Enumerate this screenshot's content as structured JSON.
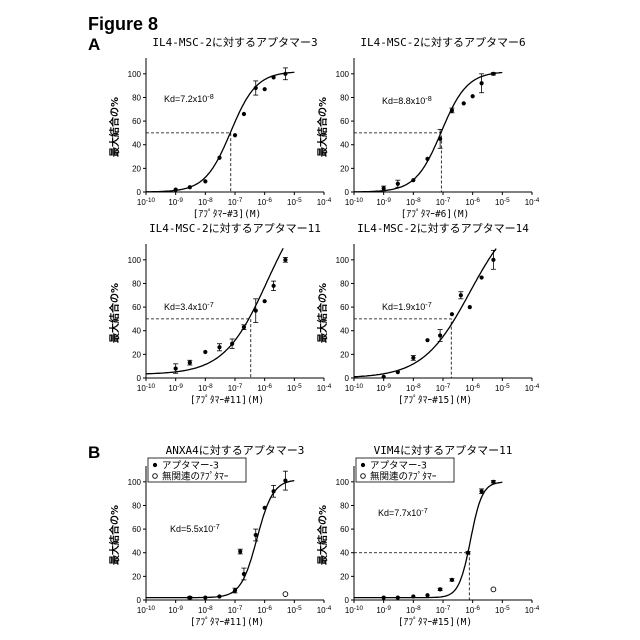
{
  "figure_title": "Figure 8",
  "section_labels": [
    "A",
    "B"
  ],
  "legend": {
    "filled": "アプタマー-3",
    "open": "無関連のｱﾌﾟﾀﾏｰ"
  },
  "chart_data": [
    {
      "type": "scatter",
      "title": "IL4-MSC-2に対するアプタマー3",
      "ylabel": "最大結合の%",
      "xlabel": "[ｱﾌﾟﾀﾏｰ#3](M)",
      "x_scale": "log",
      "xlim": [
        1e-10,
        0.0001
      ],
      "ylim": [
        0,
        110
      ],
      "xtick_labels": [
        "10-10",
        "10-9",
        "10-8",
        "10-7",
        "10-6",
        "10-5",
        "10-4"
      ],
      "ytick_labels": [
        "0",
        "20",
        "40",
        "60",
        "80",
        "100"
      ],
      "kd_label": "Kd=7.2x10-8",
      "kd_marker": {
        "x": 7.2e-08,
        "y": 50
      },
      "series": [
        {
          "marker": "filled",
          "x": [
            1e-09,
            3e-09,
            1e-08,
            3e-08,
            1e-07,
            2e-07,
            5e-07,
            1e-06,
            2e-06,
            5e-06
          ],
          "y": [
            2,
            4,
            9,
            29,
            48,
            66,
            88,
            87,
            97,
            100
          ],
          "err": [
            0,
            0,
            0,
            0,
            0,
            0,
            6,
            0,
            0,
            5
          ]
        }
      ],
      "fit": {
        "bottom": 0,
        "top": 102,
        "ec50": 7.2e-08,
        "hill": 1.0
      }
    },
    {
      "type": "scatter",
      "title": "IL4-MSC-2に対するアプタマー6",
      "ylabel": "最大結合の%",
      "xlabel": "[ｱﾌﾟﾀﾏｰ#6](M)",
      "x_scale": "log",
      "xlim": [
        1e-10,
        0.0001
      ],
      "ylim": [
        0,
        110
      ],
      "xtick_labels": [
        "10-10",
        "10-9",
        "10-8",
        "10-7",
        "10-6",
        "10-5",
        "10-4"
      ],
      "ytick_labels": [
        "0",
        "20",
        "40",
        "60",
        "80",
        "100"
      ],
      "kd_label": "Kd=8.8x10-8",
      "kd_marker": {
        "x": 8.8e-08,
        "y": 50
      },
      "series": [
        {
          "marker": "filled",
          "x": [
            1e-09,
            3e-09,
            1e-08,
            3e-08,
            8e-08,
            2e-07,
            5e-07,
            1e-06,
            2e-06,
            5e-06
          ],
          "y": [
            3,
            7,
            10,
            28,
            45,
            69,
            75,
            81,
            92,
            100
          ],
          "err": [
            2,
            3,
            0,
            0,
            8,
            2,
            0,
            0,
            8,
            1
          ]
        }
      ],
      "fit": {
        "bottom": 0,
        "top": 102,
        "ec50": 8.8e-08,
        "hill": 1.0
      }
    },
    {
      "type": "scatter",
      "title": "IL4-MSC-2に対するアプタマー11",
      "ylabel": "最大結合の%",
      "xlabel": "[ｱﾌﾟﾀﾏｰ#11](M)",
      "x_scale": "log",
      "xlim": [
        1e-10,
        0.0001
      ],
      "ylim": [
        0,
        110
      ],
      "xtick_labels": [
        "10-10",
        "10-9",
        "10-8",
        "10-7",
        "10-6",
        "10-5",
        "10-4"
      ],
      "ytick_labels": [
        "0",
        "20",
        "40",
        "60",
        "80",
        "100"
      ],
      "kd_label": "Kd=3.4x10-7",
      "kd_marker": {
        "x": 3.4e-07,
        "y": 50
      },
      "series": [
        {
          "marker": "filled",
          "x": [
            1e-09,
            3e-09,
            1e-08,
            3e-08,
            8e-08,
            2e-07,
            5e-07,
            1e-06,
            2e-06,
            5e-06
          ],
          "y": [
            8,
            13,
            22,
            26,
            29,
            43,
            57,
            65,
            78,
            100
          ],
          "err": [
            4,
            2,
            0,
            3,
            4,
            2,
            10,
            0,
            4,
            2
          ]
        }
      ],
      "fit": {
        "bottom": 3,
        "top": 160,
        "ec50": 1.2e-06,
        "hill": 0.6
      }
    },
    {
      "type": "scatter",
      "title": "IL4-MSC-2に対するアプタマー14",
      "ylabel": "最大結合の%",
      "xlabel": "[ｱﾌﾟﾀﾏｰ#15](M)",
      "x_scale": "log",
      "xlim": [
        1e-10,
        0.0001
      ],
      "ylim": [
        0,
        110
      ],
      "xtick_labels": [
        "10-10",
        "10-9",
        "10-8",
        "10-7",
        "10-6",
        "10-5",
        "10-4"
      ],
      "ytick_labels": [
        "0",
        "20",
        "40",
        "60",
        "80",
        "100"
      ],
      "kd_label": "Kd=1.9x10-7",
      "kd_marker": {
        "x": 1.9e-07,
        "y": 50
      },
      "series": [
        {
          "marker": "filled",
          "x": [
            1e-09,
            3e-09,
            1e-08,
            3e-08,
            8e-08,
            2e-07,
            4e-07,
            8e-07,
            2e-06,
            5e-06
          ],
          "y": [
            1,
            5,
            17,
            32,
            36,
            54,
            70,
            60,
            85,
            100
          ],
          "err": [
            0,
            0,
            2,
            0,
            5,
            0,
            3,
            0,
            0,
            8
          ]
        }
      ],
      "fit": {
        "bottom": 0,
        "top": 145,
        "ec50": 8e-07,
        "hill": 0.55
      }
    },
    {
      "type": "scatter",
      "title": "ANXA4に対するアプタマー3",
      "ylabel": "最大結合の%",
      "xlabel": "[ｱﾌﾟﾀﾏｰ#11](M)",
      "x_scale": "log",
      "xlim": [
        1e-10,
        0.0001
      ],
      "ylim": [
        0,
        110
      ],
      "xtick_labels": [
        "10-10",
        "10-9",
        "10-8",
        "10-7",
        "10-6",
        "10-5",
        "10-4"
      ],
      "ytick_labels": [
        "0",
        "20",
        "40",
        "60",
        "80",
        "100"
      ],
      "kd_label": "Kd=5.5x10-7",
      "legend": true,
      "series": [
        {
          "marker": "filled",
          "x": [
            3e-09,
            1e-08,
            3e-08,
            1e-07,
            1.5e-07,
            2e-07,
            5e-07,
            1e-06,
            2e-06,
            5e-06
          ],
          "y": [
            2,
            2,
            3,
            8,
            41,
            22,
            55,
            78,
            92,
            101
          ],
          "err": [
            1,
            0,
            0,
            2,
            2,
            5,
            5,
            0,
            5,
            8
          ]
        },
        {
          "marker": "open",
          "x": [
            5e-06
          ],
          "y": [
            5
          ],
          "err": [
            0
          ]
        }
      ],
      "fit": {
        "bottom": 2,
        "top": 102,
        "ec50": 5.5e-07,
        "hill": 1.6
      }
    },
    {
      "type": "scatter",
      "title": "VIM4に対するアプタマー11",
      "ylabel": "最大結合の%",
      "xlabel": "[ｱﾌﾟﾀﾏｰ#15](M)",
      "x_scale": "log",
      "xlim": [
        1e-10,
        0.0001
      ],
      "ylim": [
        0,
        110
      ],
      "xtick_labels": [
        "10-10",
        "10-9",
        "10-8",
        "10-7",
        "10-6",
        "10-5",
        "10-4"
      ],
      "ytick_labels": [
        "0",
        "20",
        "40",
        "60",
        "80",
        "100"
      ],
      "kd_label": "Kd=7.7x10-7",
      "kd_marker": {
        "x": 7.7e-07,
        "y": 40
      },
      "legend": true,
      "series": [
        {
          "marker": "filled",
          "x": [
            1e-09,
            3e-09,
            1e-08,
            3e-08,
            8e-08,
            2e-07,
            7e-07,
            2e-06,
            5e-06
          ],
          "y": [
            2,
            2,
            3,
            4,
            9,
            17,
            40,
            92,
            100
          ],
          "err": [
            0,
            0,
            0,
            0,
            1,
            1,
            1,
            2,
            1
          ]
        },
        {
          "marker": "open",
          "x": [
            5e-06
          ],
          "y": [
            9
          ],
          "err": [
            0
          ]
        }
      ],
      "fit": {
        "bottom": 2,
        "top": 100,
        "ec50": 8.5e-07,
        "hill": 2.2
      }
    }
  ]
}
